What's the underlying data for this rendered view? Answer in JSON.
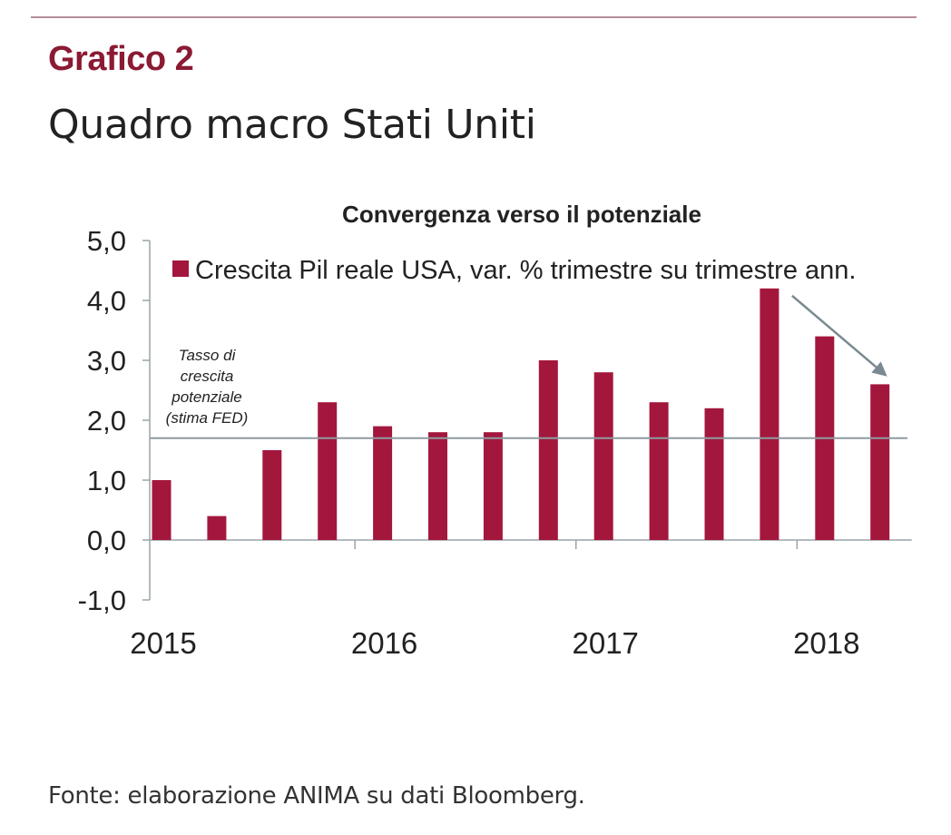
{
  "header": {
    "eyebrow": "Grafico 2",
    "title": "Quadro macro Stati Uniti"
  },
  "colors": {
    "accent": "#8b1a33",
    "bar": "#a3173d",
    "reference_line": "#8e9ba0",
    "arrow": "#7a8a90",
    "text": "#222222"
  },
  "chart_data": {
    "type": "bar",
    "title": "Convergenza verso il potenziale",
    "xlabel": "",
    "ylabel": "",
    "ylim": [
      -1,
      5
    ],
    "yticks": [
      5,
      4,
      3,
      2,
      1,
      0,
      -1
    ],
    "ytick_labels": [
      "5,0",
      "4,0",
      "3,0",
      "2,0",
      "1,0",
      "0,0",
      "-1,0"
    ],
    "x_labels": [
      {
        "label": "2015",
        "index": 0
      },
      {
        "label": "2016",
        "index": 4
      },
      {
        "label": "2017",
        "index": 8
      },
      {
        "label": "2018",
        "index": 12
      }
    ],
    "categories": [
      "2015 Q1",
      "2015 Q2",
      "2015 Q3",
      "2015 Q4",
      "2016 Q1",
      "2016 Q2",
      "2016 Q3",
      "2016 Q4",
      "2017 Q1",
      "2017 Q2",
      "2017 Q3",
      "2017 Q4",
      "2018 Q1",
      "2018 Q2"
    ],
    "series": [
      {
        "name": "Crescita Pil reale USA, var. % trimestre su trimestre ann.",
        "values": [
          1.0,
          0.4,
          1.5,
          2.3,
          1.9,
          1.8,
          1.8,
          3.0,
          2.8,
          2.3,
          2.2,
          4.2,
          3.4,
          2.6
        ]
      }
    ],
    "legend_position": "top",
    "grid": false,
    "reference_line": {
      "value": 1.7,
      "label_lines": [
        "Tasso di",
        "crescita",
        "potenziale",
        "(stima FED)"
      ]
    },
    "annotation": {
      "type": "arrow",
      "from_category_index": 11,
      "from_value": 4.2,
      "to_category_index": 13,
      "to_value": 2.7
    }
  },
  "footer": {
    "source": "Fonte: elaborazione ANIMA su dati Bloomberg."
  }
}
